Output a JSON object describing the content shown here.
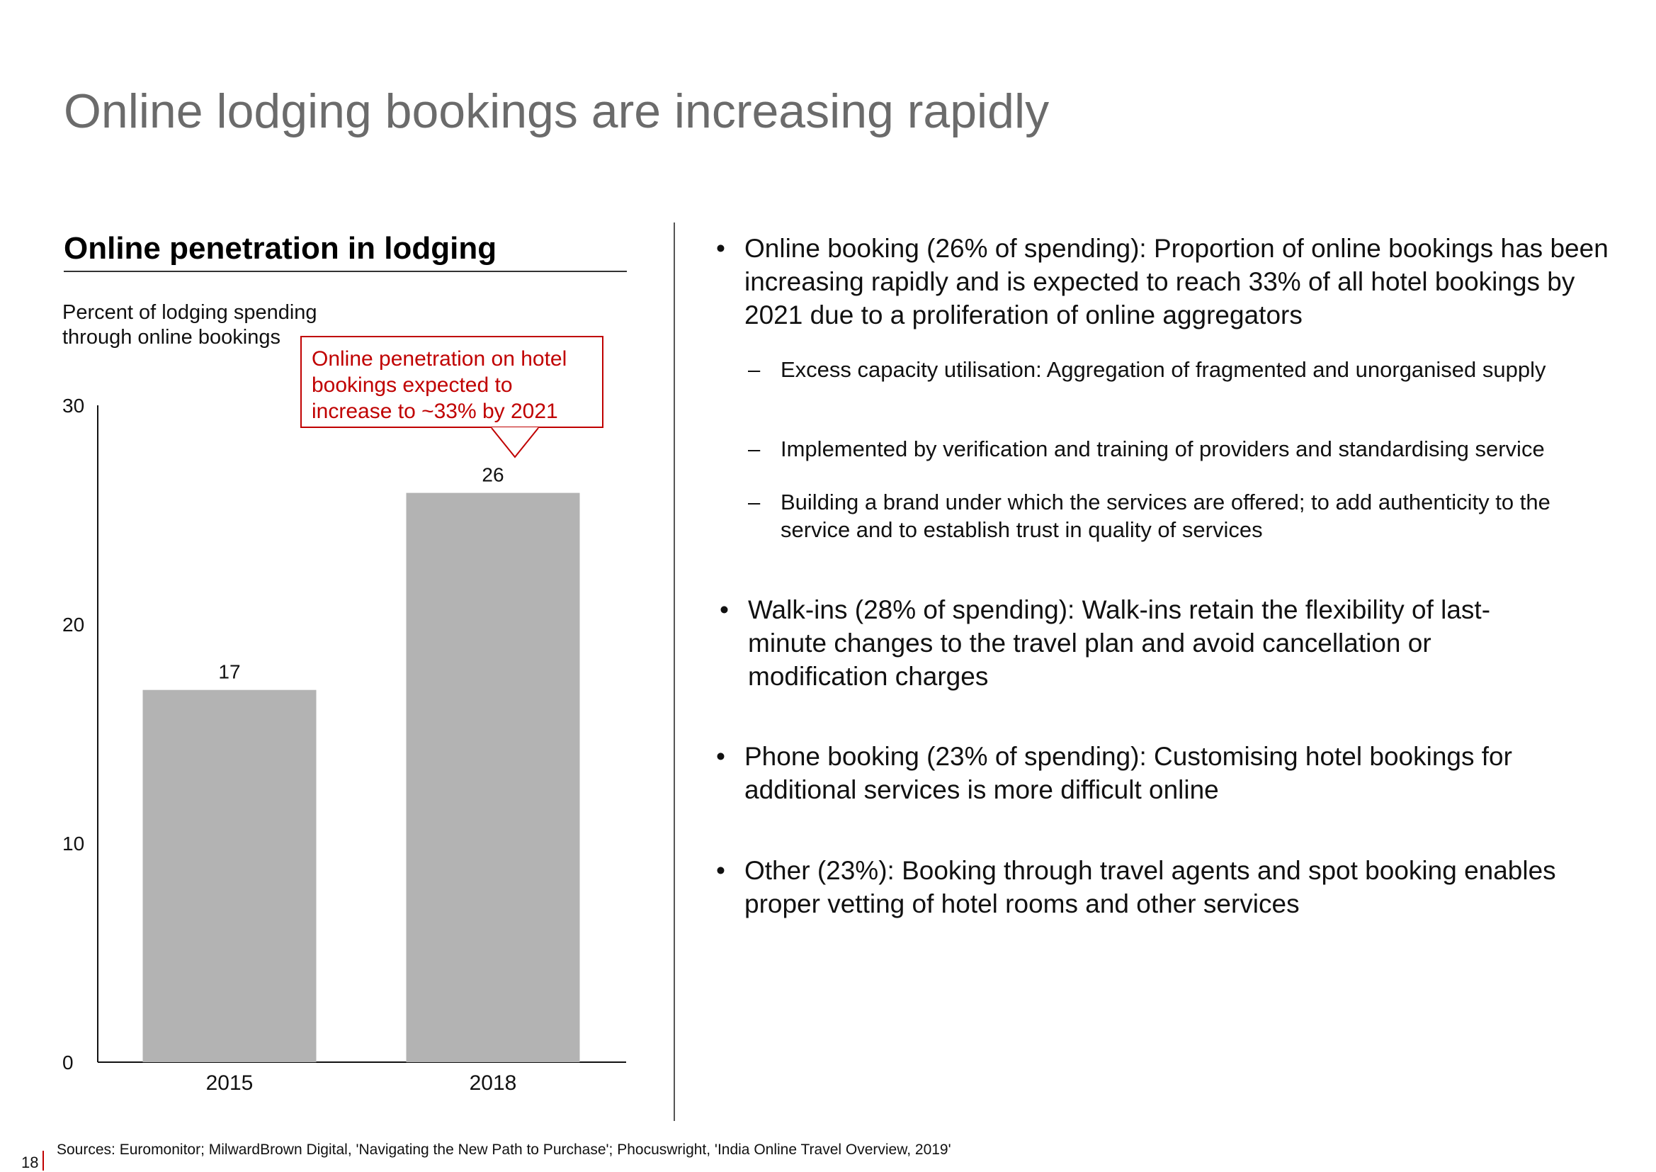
{
  "slide": {
    "title": "Online lodging bookings are increasing rapidly",
    "page_number": "18",
    "sources": "Sources: Euromonitor; MilwardBrown Digital, 'Navigating the New Path to Purchase'; Phocuswright, 'India Online Travel Overview, 2019'"
  },
  "chart_panel": {
    "heading": "Online penetration in lodging",
    "y_caption": "Percent of lodging spending through online bookings",
    "callout": "Online penetration on hotel bookings expected to increase to ~33% by 2021"
  },
  "chart_data": {
    "type": "bar",
    "title": "Online penetration in lodging",
    "ylabel": "Percent of lodging spending through online bookings",
    "categories": [
      "2015",
      "2018"
    ],
    "values": [
      17,
      26
    ],
    "value_labels": [
      "17",
      "26"
    ],
    "ylim": [
      0,
      30
    ],
    "yticks": [
      0,
      10,
      20,
      30
    ],
    "bar_color": "#b3b3b3",
    "grid": false,
    "annotation": "Online penetration on hotel bookings expected to increase to ~33% by 2021"
  },
  "bullets": [
    {
      "text": "Online booking (26% of spending): Proportion of online bookings has been increasing rapidly and is expected to reach 33% of all hotel bookings by 2021 due to a proliferation of online aggregators",
      "subs": [
        "Excess capacity utilisation: Aggregation of fragmented and unorganised supply",
        "Implemented by verification and training of providers and standardising service",
        "Building a brand under which the services are offered; to add authenticity to the service and to establish trust in quality of services"
      ]
    },
    {
      "text": "Walk-ins (28% of spending): Walk-ins retain the flexibility of last-minute changes to the travel plan and avoid cancellation or modification charges"
    },
    {
      "text": "Phone booking (23% of spending): Customising hotel bookings for additional services is more difficult online"
    },
    {
      "text": "Other (23%): Booking through travel agents and spot booking enables proper vetting of hotel rooms and other services"
    }
  ],
  "symbols": {
    "bullet": "•",
    "dash": "–"
  },
  "colors": {
    "accent": "#c00000",
    "title_gray": "#6b6b6b",
    "bar": "#b3b3b3"
  }
}
